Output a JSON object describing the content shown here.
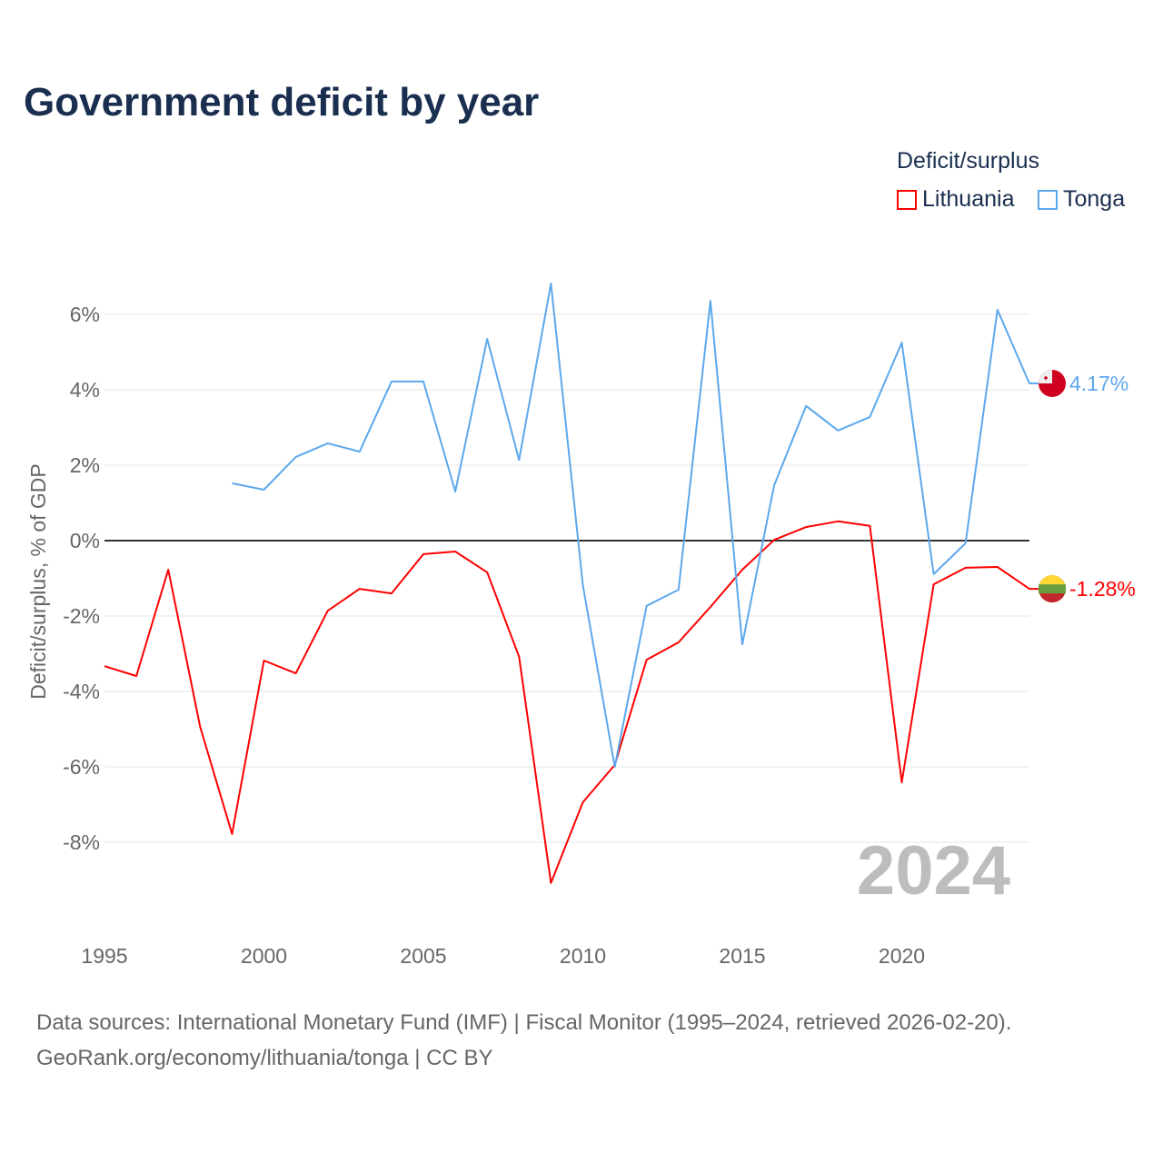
{
  "chart_data": {
    "type": "line",
    "title": "Government deficit by year",
    "ylabel": "Deficit/surplus, % of GDP",
    "xlabel": "",
    "xlim": [
      1995,
      2024
    ],
    "ylim": [
      -10,
      7
    ],
    "x_ticks": [
      1995,
      2000,
      2005,
      2010,
      2015,
      2020
    ],
    "y_ticks": [
      6,
      4,
      2,
      0,
      -2,
      -4,
      -6,
      -8
    ],
    "y_tick_labels": [
      "6%",
      "4%",
      "2%",
      "0%",
      "-2%",
      "-4%",
      "-6%",
      "-8%"
    ],
    "grid": true,
    "legend_title": "Deficit/surplus",
    "legend_position": "top-right",
    "year_watermark": "2024",
    "series": [
      {
        "name": "Lithuania",
        "color": "#ff0000",
        "end_label": "-1.28%",
        "x": [
          1995,
          1996,
          1997,
          1998,
          1999,
          2000,
          2001,
          2002,
          2003,
          2004,
          2005,
          2006,
          2007,
          2008,
          2009,
          2010,
          2011,
          2012,
          2013,
          2014,
          2015,
          2016,
          2017,
          2018,
          2019,
          2020,
          2021,
          2022,
          2023,
          2024
        ],
        "values": [
          -3.33,
          -3.59,
          -0.77,
          -4.94,
          -7.78,
          -3.18,
          -3.52,
          -1.86,
          -1.28,
          -1.4,
          -0.36,
          -0.29,
          -0.84,
          -3.08,
          -9.08,
          -6.94,
          -5.95,
          -3.16,
          -2.7,
          -1.76,
          -0.77,
          0.02,
          0.36,
          0.51,
          0.39,
          -6.41,
          -1.16,
          -0.72,
          -0.7,
          -1.28
        ]
      },
      {
        "name": "Tonga",
        "color": "#5ca8ec",
        "end_label": "4.17%",
        "x": [
          1999,
          2000,
          2001,
          2002,
          2003,
          2004,
          2005,
          2006,
          2007,
          2008,
          2009,
          2010,
          2011,
          2012,
          2013,
          2014,
          2015,
          2016,
          2017,
          2018,
          2019,
          2020,
          2021,
          2022,
          2023,
          2024
        ],
        "values": [
          1.52,
          1.35,
          2.22,
          2.58,
          2.36,
          4.22,
          4.22,
          1.3,
          5.35,
          2.14,
          6.82,
          -1.18,
          -6.0,
          -1.73,
          -1.3,
          6.36,
          -2.75,
          1.47,
          3.57,
          2.92,
          3.28,
          5.25,
          -0.89,
          -0.07,
          6.12,
          4.17
        ]
      }
    ]
  },
  "footer": {
    "line1": "Data sources: International Monetary Fund (IMF) | Fiscal Monitor (1995–2024, retrieved 2026-02-20).",
    "line2": "GeoRank.org/economy/lithuania/tonga | CC BY"
  }
}
